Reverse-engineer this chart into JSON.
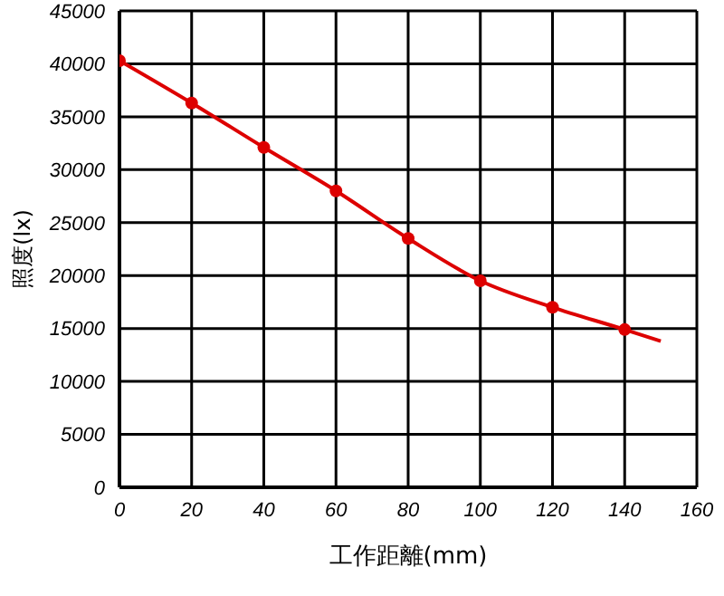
{
  "chart_data": {
    "type": "line",
    "xlabel": "工作距離(mm)",
    "ylabel": "照度(lx)",
    "xlim": [
      0,
      160
    ],
    "xticks": [
      0,
      20,
      40,
      60,
      80,
      100,
      120,
      140,
      160
    ],
    "ylim": [
      0,
      45000
    ],
    "yticks": [
      0,
      5000,
      10000,
      15000,
      20000,
      25000,
      30000,
      35000,
      40000,
      45000
    ],
    "grid": true,
    "series": [
      {
        "type": "line",
        "color": "#dd0000",
        "marker": "none",
        "x": [
          0,
          20,
          40,
          60,
          80,
          100,
          120,
          140,
          150
        ],
        "values": [
          40300,
          36300,
          32100,
          28000,
          23500,
          19500,
          17000,
          14900,
          13800
        ]
      },
      {
        "type": "scatter",
        "color": "#dd0000",
        "marker": "circle",
        "x": [
          0,
          20,
          40,
          60,
          80,
          100,
          120,
          140
        ],
        "values": [
          40300,
          36300,
          32100,
          28000,
          23500,
          19500,
          17000,
          14900
        ]
      }
    ]
  }
}
